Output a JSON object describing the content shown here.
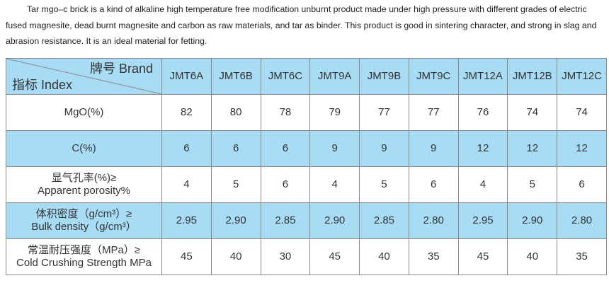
{
  "intro": "Tar mgo–c brick is a kind of alkaline high temperature free modification unburnt product made under high pressure with different grades of electric fused magnesite, dead burnt magnesite and carbon as raw materials, and tar as binder. This product is good in sintering character, and strong in slag and abrasion resistance. It is an ideal material for fetting.",
  "table": {
    "header": {
      "brand": "牌号 Brand",
      "index": "指标 Index",
      "columns": [
        "JMT6A",
        "JMT6B",
        "JMT6C",
        "JMT9A",
        "JMT9B",
        "JMT9C",
        "JMT12A",
        "JMT12B",
        "JMT12C"
      ]
    },
    "rows": [
      {
        "label": [
          "MgO(%)"
        ],
        "cells": [
          "82",
          "80",
          "78",
          "79",
          "77",
          "77",
          "76",
          "74",
          "74"
        ]
      },
      {
        "label": [
          "C(%)"
        ],
        "cells": [
          "6",
          "6",
          "6",
          "9",
          "9",
          "9",
          "12",
          "12",
          "12"
        ]
      },
      {
        "label": [
          "显气孔率(%)≥",
          "Apparent porosity%"
        ],
        "cells": [
          "4",
          "5",
          "6",
          "4",
          "5",
          "6",
          "4",
          "5",
          "6"
        ]
      },
      {
        "label": [
          "体积密度（g/cm³）≥",
          "Bulk density（g/cm³）"
        ],
        "cells": [
          "2.95",
          "2.90",
          "2.85",
          "2.90",
          "2.85",
          "2.80",
          "2.95",
          "2.90",
          "2.80"
        ]
      },
      {
        "label": [
          "常温耐压强度（MPa）≥",
          "Cold Crushing Strength MPa"
        ],
        "cells": [
          "45",
          "40",
          "30",
          "45",
          "40",
          "35",
          "45",
          "40",
          "35"
        ]
      }
    ]
  }
}
